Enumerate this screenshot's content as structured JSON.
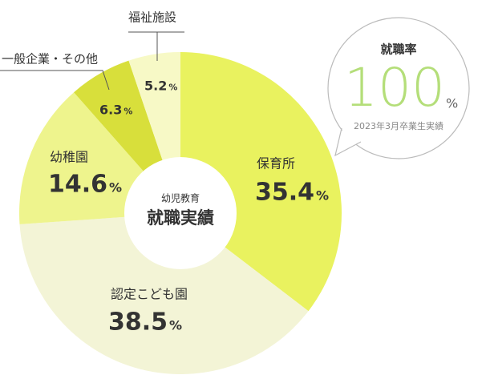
{
  "chart_data": {
    "type": "pie",
    "categories": [
      "保育所",
      "認定こども園",
      "幼稚園",
      "一般企業・その他",
      "福祉施設"
    ],
    "values": [
      35.4,
      38.5,
      14.6,
      6.3,
      5.2
    ],
    "unit": "%",
    "colors": [
      "#e9f25f",
      "#f3f4d6",
      "#eef48d",
      "#d8df3b",
      "#f7f9c6"
    ],
    "center_subtitle": "幼児教育",
    "center_title": "就職実績"
  },
  "rate_badge": {
    "title": "就職率",
    "value": 100,
    "unit": "%",
    "note": "2023年3月卒業生実績"
  }
}
